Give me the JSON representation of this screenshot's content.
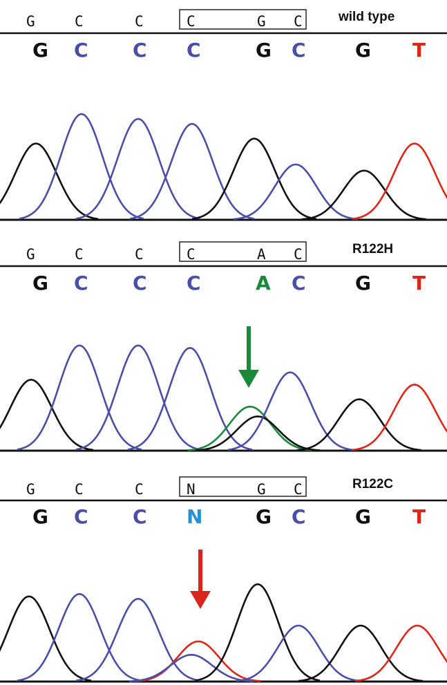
{
  "colors": {
    "G": "#111111",
    "C": "#4a4ea6",
    "A": "#1a8a3a",
    "T": "#e02418",
    "N": "#2a8fd0",
    "baseline": "#111111",
    "arrow_green": "#1a8a3a",
    "arrow_red": "#d8261c"
  },
  "panels": [
    {
      "id": "wild-type",
      "label": "wild type",
      "call_row": [
        "G",
        "C",
        "C",
        "C",
        "G",
        "C"
      ],
      "boxed_range": [
        3,
        5
      ],
      "base_row": [
        "G",
        "C",
        "C",
        "C",
        "G",
        "C",
        "G",
        "T"
      ],
      "arrow": null,
      "peaks": [
        {
          "base": "G",
          "x": 52,
          "height": 0.62
        },
        {
          "base": "C",
          "x": 118,
          "height": 0.86
        },
        {
          "base": "C",
          "x": 200,
          "height": 0.82
        },
        {
          "base": "C",
          "x": 278,
          "height": 0.78
        },
        {
          "base": "G",
          "x": 368,
          "height": 0.66
        },
        {
          "base": "C",
          "x": 428,
          "height": 0.45
        },
        {
          "base": "G",
          "x": 527,
          "height": 0.4
        },
        {
          "base": "T",
          "x": 600,
          "height": 0.62
        }
      ]
    },
    {
      "id": "r122h",
      "label": "R122H",
      "call_row": [
        "G",
        "C",
        "C",
        "C",
        "A",
        "C"
      ],
      "boxed_range": [
        3,
        5
      ],
      "base_row": [
        "G",
        "C",
        "C",
        "C",
        "A",
        "C",
        "G",
        "T"
      ],
      "arrow": {
        "color": "arrow_green",
        "x": 360
      },
      "peaks": [
        {
          "base": "G",
          "x": 45,
          "height": 0.58
        },
        {
          "base": "C",
          "x": 115,
          "height": 0.86
        },
        {
          "base": "C",
          "x": 200,
          "height": 0.86
        },
        {
          "base": "C",
          "x": 275,
          "height": 0.84
        },
        {
          "base": "A",
          "x": 362,
          "height": 0.36
        },
        {
          "base": "G",
          "x": 373,
          "height": 0.28
        },
        {
          "base": "C",
          "x": 420,
          "height": 0.64
        },
        {
          "base": "G",
          "x": 520,
          "height": 0.42
        },
        {
          "base": "T",
          "x": 600,
          "height": 0.54
        }
      ]
    },
    {
      "id": "r122c",
      "label": "R122C",
      "call_row": [
        "G",
        "C",
        "C",
        "N",
        "G",
        "C"
      ],
      "boxed_range": [
        3,
        5
      ],
      "base_row": [
        "G",
        "C",
        "C",
        "N",
        "G",
        "C",
        "G",
        "T"
      ],
      "arrow": {
        "color": "arrow_red",
        "x": 290
      },
      "peaks": [
        {
          "base": "G",
          "x": 42,
          "height": 0.7
        },
        {
          "base": "C",
          "x": 115,
          "height": 0.72
        },
        {
          "base": "C",
          "x": 200,
          "height": 0.68
        },
        {
          "base": "T",
          "x": 287,
          "height": 0.33
        },
        {
          "base": "C",
          "x": 277,
          "height": 0.22
        },
        {
          "base": "G",
          "x": 373,
          "height": 0.8
        },
        {
          "base": "C",
          "x": 432,
          "height": 0.46
        },
        {
          "base": "G",
          "x": 522,
          "height": 0.46
        },
        {
          "base": "T",
          "x": 604,
          "height": 0.46
        }
      ]
    }
  ]
}
